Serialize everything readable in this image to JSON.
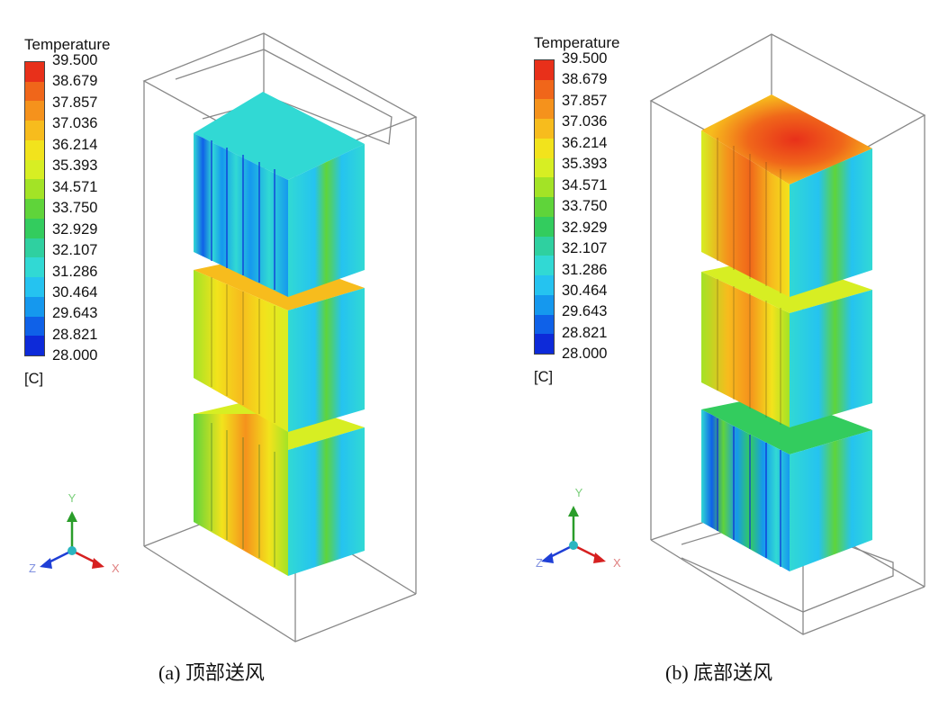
{
  "legend": {
    "title": "Temperature",
    "unit": "[C]",
    "ticks": [
      "39.500",
      "38.679",
      "37.857",
      "37.036",
      "36.214",
      "35.393",
      "34.571",
      "33.750",
      "32.929",
      "32.107",
      "31.286",
      "30.464",
      "29.643",
      "28.821",
      "28.000"
    ],
    "colors": [
      "#e8301a",
      "#f0661a",
      "#f5921c",
      "#f7bc1d",
      "#f2e31c",
      "#d7ee23",
      "#a3e326",
      "#5fd43a",
      "#33cc5e",
      "#2fd0a0",
      "#31d9d4",
      "#25c3f0",
      "#1598ee",
      "#0f61e8",
      "#0d2ad9"
    ]
  },
  "axes": {
    "x": "X",
    "y": "Y",
    "z": "Z"
  },
  "panels": [
    {
      "caption": "(a)  顶部送风"
    },
    {
      "caption": "(b)  底部送风"
    }
  ]
}
